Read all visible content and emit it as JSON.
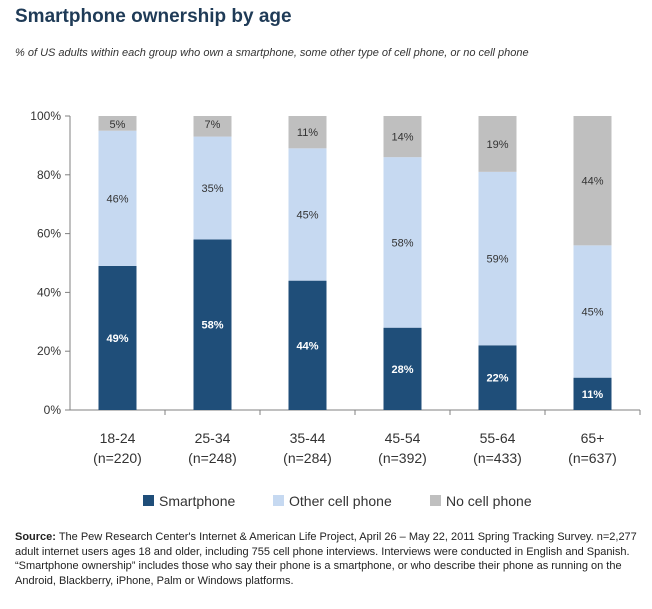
{
  "title": "Smartphone ownership by age",
  "subtitle": "% of US adults within each group who own a smartphone, some other type of cell phone, or no cell phone",
  "source": {
    "label": "Source:",
    "text": "The Pew Research Center's Internet & American Life Project, April 26 – May 22, 2011 Spring Tracking Survey. n=2,277 adult internet users ages 18 and older, including 755 cell phone interviews. Interviews were conducted in English and Spanish. “Smartphone ownership” includes those who say their phone is a smartphone, or who describe their phone as running on the Android, Blackberry, iPhone, Palm or Windows platforms."
  },
  "chart_data": {
    "type": "bar",
    "stacked": true,
    "title": "Smartphone ownership by age",
    "subtitle": "% of US adults within each group who own a smartphone, some other type of cell phone, or no cell phone",
    "categories": [
      "18-24",
      "25-34",
      "35-44",
      "45-54",
      "55-64",
      "65+"
    ],
    "category_sublabels": [
      "(n=220)",
      "(n=248)",
      "(n=284)",
      "(n=392)",
      "(n=433)",
      "(n=637)"
    ],
    "series": [
      {
        "name": "Smartphone",
        "color": "#1f4e79",
        "values": [
          49,
          58,
          44,
          28,
          22,
          11
        ]
      },
      {
        "name": "Other cell phone",
        "color": "#c6d9f1",
        "values": [
          46,
          35,
          45,
          58,
          59,
          45
        ]
      },
      {
        "name": "No cell phone",
        "color": "#bfbfbf",
        "values": [
          5,
          7,
          11,
          14,
          19,
          44
        ]
      }
    ],
    "yticks": [
      "0%",
      "20%",
      "40%",
      "60%",
      "80%",
      "100%"
    ],
    "ylim": [
      0,
      100
    ],
    "legend_position": "bottom",
    "grid": false
  }
}
